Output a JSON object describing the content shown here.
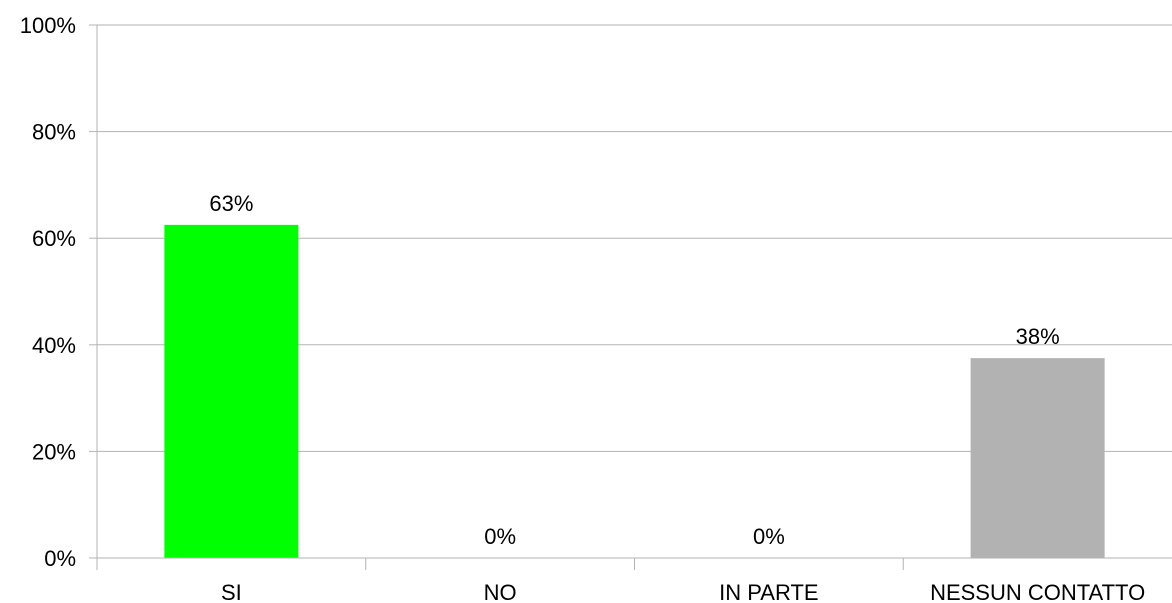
{
  "chart_data": {
    "type": "bar",
    "categories": [
      "SI",
      "NO",
      "IN PARTE",
      "NESSUN CONTATTO"
    ],
    "values": [
      62.5,
      0,
      0,
      37.5
    ],
    "data_labels": [
      "63%",
      "0%",
      "0%",
      "38%"
    ],
    "bar_colors": [
      "#00ff00",
      "#00ff00",
      "#00ff00",
      "#b2b2b2"
    ],
    "ylim": [
      0,
      100
    ],
    "yticks": [
      0,
      20,
      40,
      60,
      80,
      100
    ],
    "ytick_labels": [
      "0%",
      "20%",
      "40%",
      "60%",
      "80%",
      "100%"
    ],
    "grid": true,
    "legend": "none",
    "title": "",
    "xlabel": "",
    "ylabel": ""
  }
}
